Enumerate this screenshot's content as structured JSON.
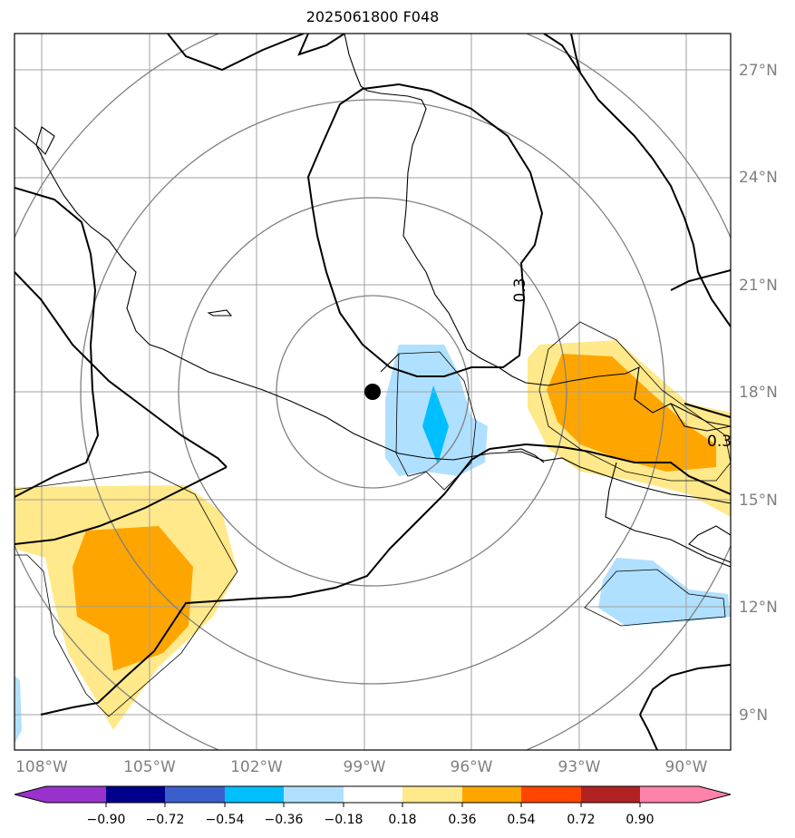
{
  "title": "2025061800 F048",
  "map": {
    "lat_labels": [
      "27°N",
      "24°N",
      "21°N",
      "18°N",
      "15°N",
      "12°N",
      "9°N"
    ],
    "lon_labels": [
      "108°W",
      "105°W",
      "102°W",
      "99°W",
      "96°W",
      "93°W",
      "90°W"
    ],
    "contour_labels": [
      "0.3",
      "0.3"
    ],
    "center_marker": "storm-center"
  },
  "colorbar": {
    "ticks": [
      "−0.90",
      "−0.72",
      "−0.54",
      "−0.36",
      "−0.18",
      "0.18",
      "0.36",
      "0.54",
      "0.72",
      "0.90"
    ],
    "colors": {
      "under": "#9932cc",
      "c1": "#00008b",
      "c2": "#3a5fcd",
      "c3": "#00bfff",
      "c4": "#b0e0ff",
      "neutral": "#ffffff",
      "c6": "#ffe98a",
      "c7": "#ffa500",
      "c8": "#ff4500",
      "c9": "#b22222",
      "over": "#ff82ab"
    }
  }
}
